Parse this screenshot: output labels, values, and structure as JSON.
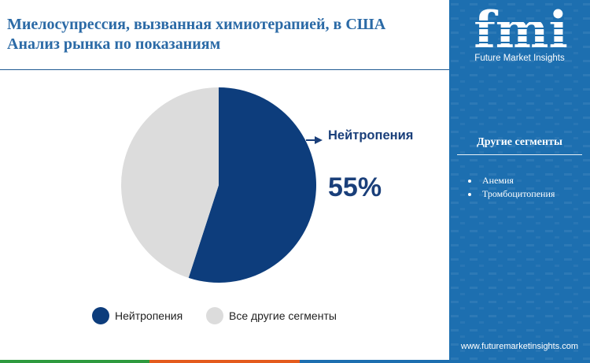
{
  "header": {
    "title_line1": "Миелосупрессия, вызванная химиотерапией, в США",
    "title_line2": "Анализ рынка по показаниям"
  },
  "brand": {
    "logo_text": "fmi",
    "tagline": "Future Market Insights",
    "website": "www.futuremarketinsights.com"
  },
  "sidebar": {
    "heading": "Другие сегменты",
    "items": [
      "Анемия",
      "Тромбоцитопения"
    ]
  },
  "callout": {
    "label": "Нейтропения",
    "value": "55%"
  },
  "legend": [
    {
      "label": "Нейтропения",
      "color": "#0d3d7c"
    },
    {
      "label": "Все другие сегменты",
      "color": "#dcdcdc"
    }
  ],
  "colors": {
    "accent": "#1d6fb0",
    "primary_slice": "#0d3d7c",
    "secondary_slice": "#dcdcdc",
    "bottom_bar": [
      "#2e9a3e",
      "#e45b1d",
      "#1d6fb0"
    ]
  },
  "chart_data": {
    "type": "pie",
    "title": "",
    "slices": [
      {
        "label": "Нейтропения",
        "value": 55,
        "color": "#0d3d7c"
      },
      {
        "label": "Все другие сегменты",
        "value": 45,
        "color": "#dcdcdc"
      }
    ]
  }
}
